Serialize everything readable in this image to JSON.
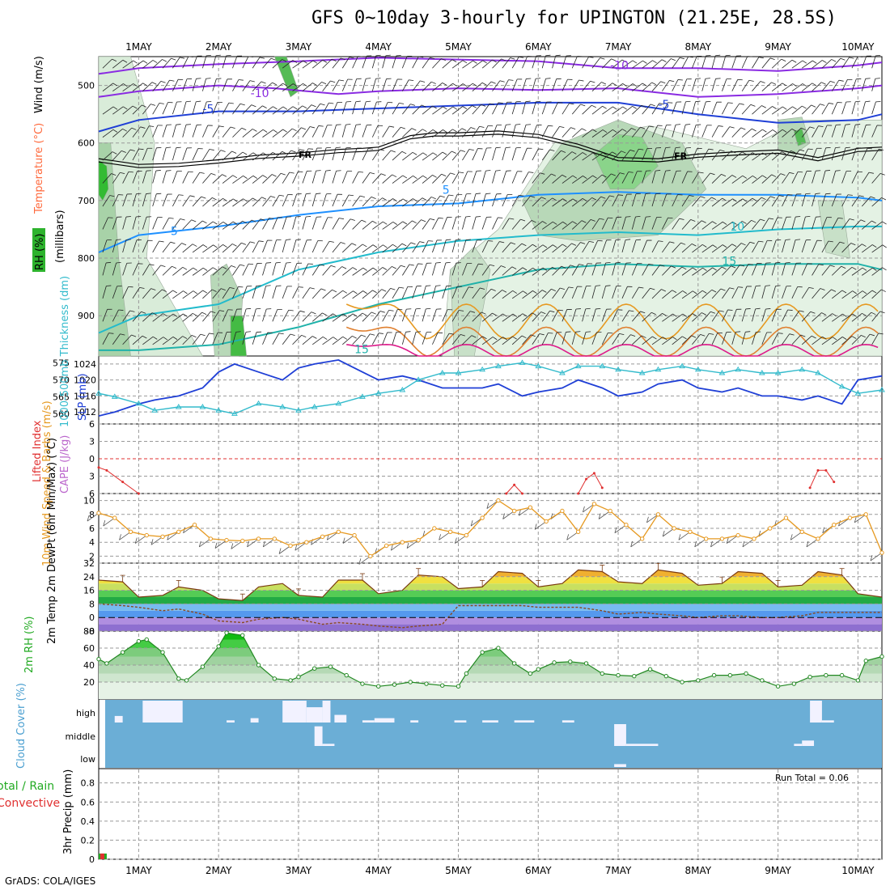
{
  "title": "GFS 0~10day 3-hourly for UPINGTON (21.25E, 28.5S)",
  "credit": "GrADS: COLA/IGES",
  "run_total_label": "Run Total = 0.06",
  "colors": {
    "rh_fill": "#2db32d",
    "temperature": "#ff6a3d",
    "wind": "#000000",
    "slp": "#1f3fd6",
    "thickness": "#33bbcc",
    "lifted_index": "#e03030",
    "cape": "#bb66cc",
    "wind10m": "#e69920",
    "rh2m": "#22aa22",
    "cloud_bg": "#6baed6",
    "precip_total": "#22aa22",
    "precip_conv": "#e03030"
  },
  "chart_data": [
    {
      "id": "upper_air",
      "type": "contour",
      "ylabel": "(millibars)",
      "side_labels": [
        "RH (%)",
        "Temperature (°C)",
        "Wind (m/s)"
      ],
      "x_dates": [
        "1MAY",
        "2MAY",
        "3MAY",
        "4MAY",
        "5MAY",
        "6MAY",
        "7MAY",
        "8MAY",
        "9MAY",
        "10MAY"
      ],
      "x_range_days": [
        0.5,
        10.3
      ],
      "y_ticks": [
        500,
        600,
        700,
        800,
        900
      ],
      "y_range_mb": [
        450,
        970
      ],
      "freezing_level_label": "FR",
      "freezing_level": {
        "days": [
          0.5,
          1.0,
          1.5,
          2.0,
          2.5,
          3.0,
          3.5,
          3.8,
          4.0,
          4.4,
          4.7,
          5.0,
          5.5,
          6.0,
          6.5,
          7.0,
          7.5,
          8.0,
          8.5,
          9.0,
          9.5,
          10.0,
          10.3
        ],
        "mb": [
          630,
          640,
          638,
          632,
          624,
          620,
          614,
          612,
          610,
          590,
          585,
          585,
          582,
          588,
          605,
          628,
          630,
          622,
          618,
          615,
          628,
          612,
          610
        ]
      },
      "isotherms": [
        {
          "label": "-10",
          "color": "#8a2be2",
          "days": [
            0.5,
            1.0,
            2.0,
            3.0,
            4.0,
            5.0,
            6.0,
            7.0,
            8.0,
            9.0,
            10.0,
            10.3
          ],
          "mb": [
            480,
            470,
            463,
            458,
            452,
            455,
            458,
            470,
            470,
            475,
            465,
            460
          ]
        },
        {
          "label": "-10",
          "color": "#8a2be2",
          "days": [
            0.5,
            1.0,
            2.0,
            2.7,
            3.5,
            4.0,
            5.0,
            6.0,
            7.0,
            8.0,
            9.0,
            10.0,
            10.3
          ],
          "mb": [
            520,
            510,
            500,
            505,
            515,
            510,
            505,
            508,
            505,
            520,
            515,
            505,
            500
          ]
        },
        {
          "label": "-5",
          "color": "#1f3fd6",
          "days": [
            0.5,
            1.0,
            2.0,
            3.0,
            4.0,
            5.0,
            6.0,
            7.0,
            8.0,
            9.0,
            10.0,
            10.3
          ],
          "mb": [
            580,
            560,
            545,
            545,
            540,
            535,
            530,
            530,
            550,
            565,
            560,
            550
          ]
        },
        {
          "label": "5",
          "color": "#1e90ff",
          "days": [
            0.5,
            1.0,
            2.0,
            3.0,
            4.0,
            5.0,
            6.0,
            7.0,
            8.0,
            9.0,
            10.0,
            10.3
          ],
          "mb": [
            790,
            760,
            745,
            725,
            710,
            705,
            690,
            685,
            690,
            690,
            695,
            700
          ]
        },
        {
          "label": "10",
          "color": "#22bbcc",
          "days": [
            0.5,
            1.0,
            2.0,
            3.0,
            4.0,
            5.0,
            6.0,
            7.0,
            8.0,
            9.0,
            10.0,
            10.3
          ],
          "mb": [
            930,
            900,
            880,
            820,
            790,
            770,
            760,
            755,
            760,
            750,
            745,
            745
          ]
        },
        {
          "label": "15",
          "color": "#20b2aa",
          "days": [
            0.5,
            1.0,
            2.0,
            3.0,
            4.0,
            5.0,
            6.0,
            7.0,
            8.0,
            9.0,
            10.0,
            10.3
          ],
          "mb": [
            960,
            960,
            950,
            920,
            880,
            850,
            820,
            810,
            815,
            810,
            810,
            820
          ]
        }
      ],
      "contour_labels": [
        {
          "text": "-10",
          "day": 6.9,
          "mb": 472,
          "color": "#8a2be2"
        },
        {
          "text": "-10",
          "day": 2.4,
          "mb": 520,
          "color": "#8a2be2"
        },
        {
          "text": "-5",
          "day": 7.5,
          "mb": 540,
          "color": "#1f3fd6"
        },
        {
          "text": "-5",
          "day": 1.8,
          "mb": 548,
          "color": "#1f3fd6"
        },
        {
          "text": "5",
          "day": 4.8,
          "mb": 688,
          "color": "#1e90ff"
        },
        {
          "text": "5",
          "day": 1.4,
          "mb": 760,
          "color": "#1e90ff"
        },
        {
          "text": "10",
          "day": 8.4,
          "mb": 752,
          "color": "#22bbcc"
        },
        {
          "text": "15",
          "day": 8.3,
          "mb": 812,
          "color": "#20b2aa"
        },
        {
          "text": "15",
          "day": 3.7,
          "mb": 965,
          "color": "#20b2aa"
        }
      ]
    },
    {
      "id": "slp_thickness",
      "type": "line",
      "ylabel": "SLP (mb)",
      "ylabel2": "1000-500mb Thickness (dm)",
      "slp_ticks": [
        1012,
        1016,
        1020,
        1024
      ],
      "slp_range": [
        1009,
        1026
      ],
      "thk_ticks": [
        560,
        565,
        570,
        575
      ],
      "thk_range": [
        557,
        577
      ],
      "days": [
        0.5,
        0.7,
        1.0,
        1.2,
        1.5,
        1.8,
        2.0,
        2.2,
        2.5,
        2.8,
        3.0,
        3.2,
        3.5,
        3.8,
        4.0,
        4.3,
        4.5,
        4.8,
        5.0,
        5.3,
        5.5,
        5.8,
        6.0,
        6.3,
        6.5,
        6.8,
        7.0,
        7.3,
        7.5,
        7.8,
        8.0,
        8.3,
        8.5,
        8.8,
        9.0,
        9.3,
        9.5,
        9.8,
        10.0,
        10.3
      ],
      "slp": [
        1011,
        1012,
        1014,
        1015,
        1016,
        1018,
        1022,
        1024,
        1022,
        1020,
        1023,
        1024,
        1025,
        1022,
        1020,
        1021,
        1020,
        1018,
        1018,
        1018,
        1019,
        1016,
        1017,
        1018,
        1020,
        1018,
        1016,
        1017,
        1019,
        1020,
        1018,
        1017,
        1018,
        1016,
        1016,
        1015,
        1016,
        1014,
        1020,
        1021
      ],
      "thickness": [
        566,
        565,
        563,
        561,
        562,
        562,
        561,
        560,
        563,
        562,
        561,
        562,
        563,
        565,
        566,
        567,
        570,
        572,
        572,
        573,
        574,
        575,
        574,
        572,
        574,
        574,
        573,
        572,
        573,
        574,
        573,
        572,
        573,
        572,
        572,
        573,
        572,
        568,
        566,
        567
      ]
    },
    {
      "id": "lifted_cape",
      "type": "line",
      "ylabel": "Lifted Index",
      "ylabel2": "CAPE (J/kg)",
      "li_ticks": [
        -6,
        -3,
        0,
        3,
        6
      ],
      "li_range": [
        -6,
        6
      ],
      "days": [
        0.5,
        0.6,
        0.8,
        1.0,
        5.6,
        5.7,
        5.8,
        6.5,
        6.6,
        6.7,
        6.8,
        9.4,
        9.5,
        9.6,
        9.7
      ],
      "li": [
        1.5,
        2.0,
        4.0,
        6.0,
        6.0,
        4.5,
        6.0,
        6.0,
        3.5,
        2.5,
        5.0,
        5.0,
        2.0,
        2.0,
        4.0
      ]
    },
    {
      "id": "wind10m",
      "type": "line",
      "ylabel": "10m Wind Speed & Barbs (m/s)",
      "ticks": [
        2,
        4,
        6,
        8,
        10
      ],
      "range": [
        1,
        11
      ],
      "days": [
        0.5,
        0.7,
        0.9,
        1.1,
        1.3,
        1.5,
        1.7,
        1.9,
        2.1,
        2.3,
        2.5,
        2.7,
        2.9,
        3.1,
        3.3,
        3.5,
        3.7,
        3.9,
        4.1,
        4.3,
        4.5,
        4.7,
        4.9,
        5.1,
        5.3,
        5.5,
        5.7,
        5.9,
        6.1,
        6.3,
        6.5,
        6.7,
        6.9,
        7.1,
        7.3,
        7.5,
        7.7,
        7.9,
        8.1,
        8.3,
        8.5,
        8.7,
        8.9,
        9.1,
        9.3,
        9.5,
        9.7,
        9.9,
        10.1,
        10.3
      ],
      "speed": [
        8.2,
        7.5,
        5.5,
        5.0,
        4.8,
        5.5,
        6.5,
        4.5,
        4.3,
        4.2,
        4.5,
        4.5,
        3.5,
        4.0,
        4.8,
        5.5,
        5.0,
        2.0,
        3.5,
        4.0,
        4.3,
        6.0,
        5.5,
        5.0,
        7.5,
        10.0,
        8.5,
        9.0,
        7.0,
        8.5,
        5.5,
        9.5,
        8.5,
        6.5,
        4.5,
        8.0,
        6.0,
        5.5,
        4.5,
        4.5,
        5.0,
        4.5,
        6.0,
        7.5,
        5.5,
        4.5,
        6.5,
        7.5,
        8.0,
        2.5
      ]
    },
    {
      "id": "temp2m",
      "type": "area",
      "ylabel": "2m Temp 2m DewPt (6hr Min/Max) (°C)",
      "ticks": [
        -8,
        0,
        8,
        16,
        24,
        32
      ],
      "range": [
        -8,
        32
      ],
      "days": [
        0.5,
        0.8,
        1.0,
        1.3,
        1.5,
        1.8,
        2.0,
        2.3,
        2.5,
        2.8,
        3.0,
        3.3,
        3.5,
        3.8,
        4.0,
        4.3,
        4.5,
        4.8,
        5.0,
        5.3,
        5.5,
        5.8,
        6.0,
        6.3,
        6.5,
        6.8,
        7.0,
        7.3,
        7.5,
        7.8,
        8.0,
        8.3,
        8.5,
        8.8,
        9.0,
        9.3,
        9.5,
        9.8,
        10.0,
        10.3
      ],
      "temp": [
        22,
        21,
        12,
        13,
        18,
        16,
        11,
        10,
        18,
        20,
        13,
        12,
        22,
        22,
        14,
        16,
        25,
        24,
        17,
        18,
        27,
        26,
        18,
        20,
        28,
        27,
        21,
        20,
        28,
        26,
        19,
        20,
        27,
        26,
        18,
        19,
        27,
        25,
        14,
        12
      ],
      "dewpt": [
        8,
        7,
        6,
        4,
        5,
        2,
        -2,
        -3,
        -1,
        0,
        -1,
        -4,
        -3,
        -4,
        -5,
        -6,
        -5,
        -4,
        7,
        7,
        7,
        7,
        6,
        6,
        6,
        4,
        2,
        3,
        2,
        1,
        0,
        1,
        1,
        0,
        0,
        1,
        3,
        3,
        3,
        3
      ]
    },
    {
      "id": "rh2m",
      "type": "area",
      "ylabel": "2m RH (%)",
      "ticks": [
        20,
        40,
        60,
        80
      ],
      "range": [
        0,
        80
      ],
      "days": [
        0.5,
        0.6,
        0.8,
        1.0,
        1.1,
        1.3,
        1.5,
        1.6,
        1.8,
        2.0,
        2.1,
        2.3,
        2.5,
        2.7,
        2.9,
        3.0,
        3.2,
        3.4,
        3.6,
        3.8,
        4.0,
        4.2,
        4.4,
        4.6,
        4.8,
        5.0,
        5.1,
        5.3,
        5.5,
        5.7,
        5.9,
        6.0,
        6.2,
        6.4,
        6.6,
        6.8,
        7.0,
        7.2,
        7.4,
        7.6,
        7.8,
        8.0,
        8.2,
        8.4,
        8.6,
        8.8,
        9.0,
        9.2,
        9.4,
        9.6,
        9.8,
        10.0,
        10.1,
        10.3
      ],
      "rh": [
        47,
        42,
        55,
        68,
        70,
        55,
        24,
        22,
        38,
        62,
        78,
        75,
        40,
        24,
        22,
        26,
        36,
        38,
        28,
        18,
        15,
        17,
        20,
        18,
        16,
        15,
        30,
        55,
        60,
        42,
        30,
        35,
        43,
        44,
        42,
        30,
        28,
        27,
        35,
        27,
        20,
        22,
        28,
        28,
        30,
        22,
        15,
        18,
        26,
        28,
        28,
        22,
        45,
        50
      ]
    },
    {
      "id": "cloud",
      "type": "bar",
      "ylabel": "Cloud Cover (%)",
      "levels": [
        "high",
        "middle",
        "low"
      ],
      "blocks": [
        {
          "level": "high",
          "d0": 0.7,
          "d1": 0.8,
          "frac": 0.3
        },
        {
          "level": "high",
          "d0": 1.05,
          "d1": 1.55,
          "frac": 1.0
        },
        {
          "level": "high",
          "d0": 2.1,
          "d1": 2.2,
          "frac": 0.1
        },
        {
          "level": "high",
          "d0": 2.4,
          "d1": 2.5,
          "frac": 0.2
        },
        {
          "level": "high",
          "d0": 2.8,
          "d1": 3.1,
          "frac": 1.0
        },
        {
          "level": "high",
          "d0": 3.1,
          "d1": 3.3,
          "frac": 0.7
        },
        {
          "level": "high",
          "d0": 3.3,
          "d1": 3.4,
          "frac": 1.0
        },
        {
          "level": "high",
          "d0": 3.45,
          "d1": 3.6,
          "frac": 0.35
        },
        {
          "level": "high",
          "d0": 3.8,
          "d1": 3.95,
          "frac": 0.1
        },
        {
          "level": "high",
          "d0": 3.95,
          "d1": 4.2,
          "frac": 0.2
        },
        {
          "level": "high",
          "d0": 4.4,
          "d1": 4.5,
          "frac": 0.1
        },
        {
          "level": "high",
          "d0": 4.95,
          "d1": 5.1,
          "frac": 0.1
        },
        {
          "level": "high",
          "d0": 5.3,
          "d1": 5.5,
          "frac": 0.1
        },
        {
          "level": "high",
          "d0": 5.7,
          "d1": 5.95,
          "frac": 0.1
        },
        {
          "level": "high",
          "d0": 6.3,
          "d1": 6.45,
          "frac": 0.1
        },
        {
          "level": "high",
          "d0": 9.4,
          "d1": 9.55,
          "frac": 1.0
        },
        {
          "level": "high",
          "d0": 9.55,
          "d1": 9.7,
          "frac": 0.1
        },
        {
          "level": "middle",
          "d0": 3.2,
          "d1": 3.3,
          "frac": 0.9
        },
        {
          "level": "middle",
          "d0": 3.3,
          "d1": 3.45,
          "frac": 0.1
        },
        {
          "level": "middle",
          "d0": 6.95,
          "d1": 7.1,
          "frac": 1.0
        },
        {
          "level": "middle",
          "d0": 7.1,
          "d1": 7.5,
          "frac": 0.1
        },
        {
          "level": "middle",
          "d0": 9.2,
          "d1": 9.3,
          "frac": 0.1
        },
        {
          "level": "middle",
          "d0": 9.3,
          "d1": 9.45,
          "frac": 0.25
        },
        {
          "level": "low",
          "d0": 6.95,
          "d1": 7.1,
          "frac": 0.15
        }
      ]
    },
    {
      "id": "precip",
      "type": "bar",
      "ylabel": "3hr Precip (mm)",
      "ylabel2": "Total / Rain",
      "ylabel3": "Convective",
      "ticks": [
        0,
        0.2,
        0.4,
        0.6,
        0.8
      ],
      "range": [
        0,
        0.95
      ],
      "bars": [
        {
          "day": 0.55,
          "total": 0.06,
          "convective": 0.06
        }
      ]
    }
  ]
}
